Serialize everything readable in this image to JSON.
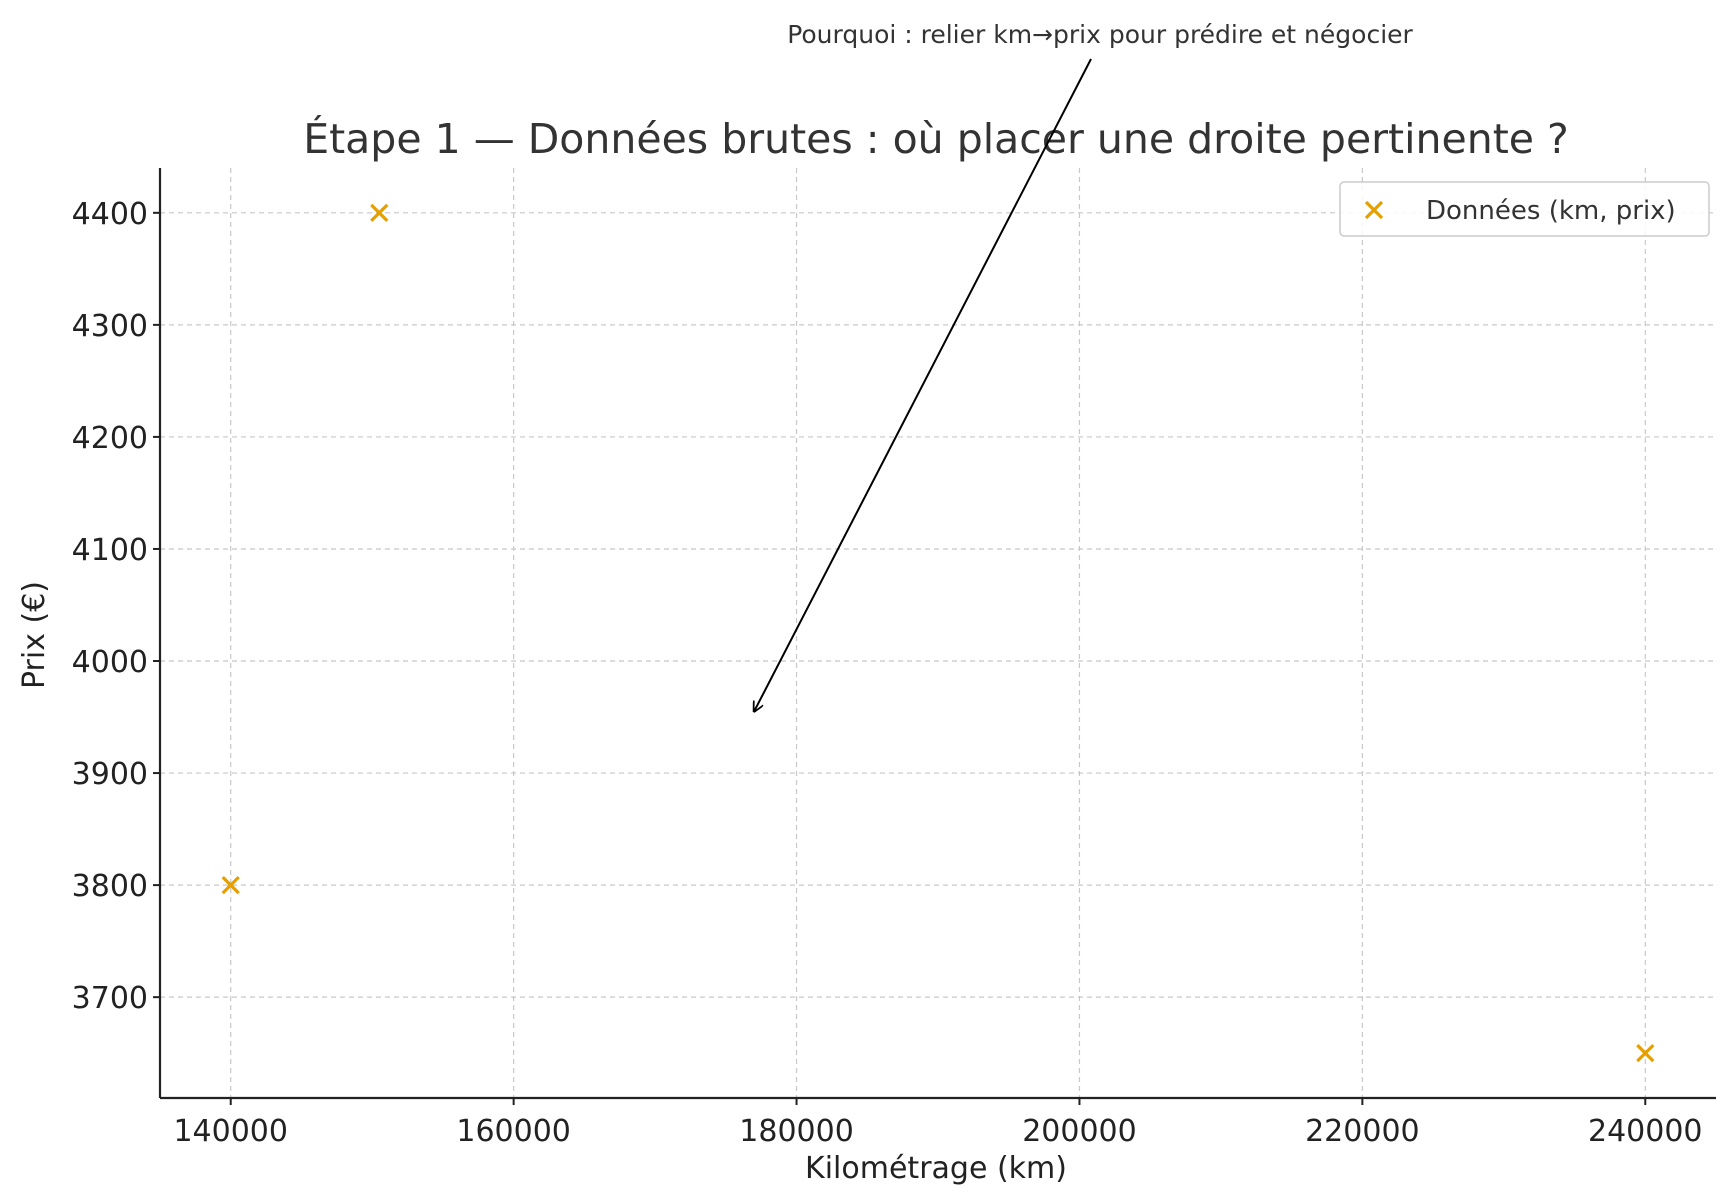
{
  "chart_data": {
    "type": "scatter",
    "title": "Étape 1 — Données brutes : où placer une droite pertinente ?",
    "xlabel": "Kilométrage (km)",
    "ylabel": "Prix (€)",
    "xlim": [
      135000,
      245000
    ],
    "ylim": [
      3610,
      4440
    ],
    "xticks": [
      140000,
      160000,
      180000,
      200000,
      220000,
      240000
    ],
    "yticks": [
      3700,
      3800,
      3900,
      4000,
      4100,
      4200,
      4300,
      4400
    ],
    "grid": true,
    "legend_position": "top-right",
    "series": [
      {
        "name": "Données (km, prix)",
        "marker": "x",
        "color": "#E69F00",
        "points": [
          {
            "x": 140000,
            "y": 3800
          },
          {
            "x": 150500,
            "y": 4400
          },
          {
            "x": 240000,
            "y": 3650
          }
        ]
      }
    ],
    "annotation": {
      "text": "Pourquoi : relier km→prix pour prédire et négocier",
      "arrow_to": {
        "x": 177000,
        "y": 3955
      }
    }
  }
}
